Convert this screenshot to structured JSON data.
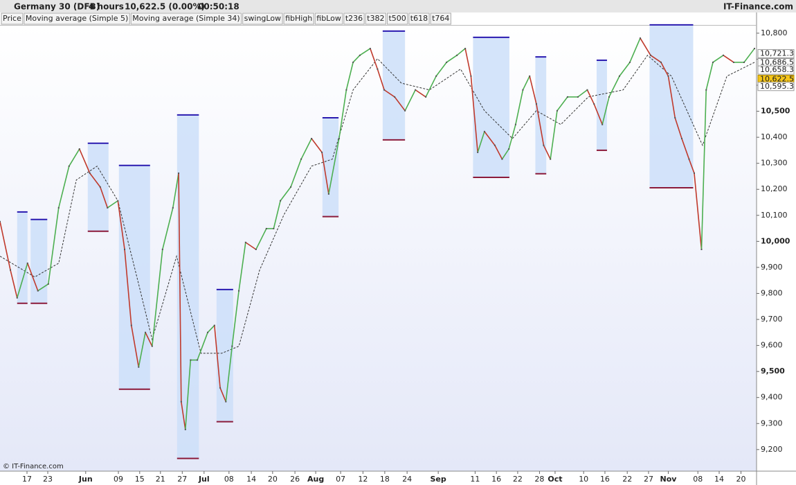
{
  "chart_data": {
    "type": "line",
    "header": {
      "instrument": "Germany 30 (DFB)",
      "period": "4 hours",
      "quote": "10,622.5 (0.00%)",
      "time": "00:50:18",
      "brand": "IT-Finance.com"
    },
    "copyright": "© IT-Finance.com",
    "series": [
      {
        "name": "Price",
        "up_color": "#4caf50",
        "down_color": "#c0392b",
        "x": [
          0.0,
          2.0,
          3.3,
          5.3,
          7.3,
          9.3,
          11.3,
          13.3,
          15.3,
          17.3,
          19.3,
          20.7,
          22.7,
          24.0,
          25.3,
          26.7,
          28.0,
          29.3,
          31.3,
          33.3,
          34.4,
          34.9,
          35.7,
          36.7,
          38.0,
          40.0,
          41.3,
          42.4,
          43.5,
          44.7,
          46.0,
          47.3,
          49.3,
          51.3,
          52.7,
          54.0,
          56.0,
          58.0,
          60.0,
          62.0,
          63.3,
          65.3,
          66.7,
          68.0,
          69.3,
          71.3,
          72.7,
          74.0,
          76.0,
          78.0,
          80.0,
          82.0,
          84.0,
          86.0,
          88.0,
          89.6,
          90.7,
          92.0,
          93.3,
          95.3,
          96.7,
          98.0,
          99.3,
          100.7,
          102.0,
          103.3,
          104.7,
          106.0,
          107.3,
          109.3,
          111.3,
          113.1,
          114.4,
          116.0,
          117.3,
          119.3,
          121.3,
          123.3,
          125.3,
          127.3,
          128.7,
          130.0,
          131.3,
          132.7,
          133.7,
          135.1,
          136.0,
          137.3,
          139.3,
          141.3,
          143.3,
          145.3
        ],
        "values": [
          10076,
          9890,
          9783,
          9916,
          9810,
          9836,
          10129,
          10289,
          10355,
          10262,
          10209,
          10129,
          10156,
          9969,
          9677,
          9517,
          9650,
          9597,
          9969,
          10129,
          10262,
          9384,
          9277,
          9544,
          9544,
          9650,
          9677,
          9437,
          9384,
          9597,
          9810,
          9996,
          9969,
          10049,
          10049,
          10156,
          10209,
          10316,
          10395,
          10342,
          10182,
          10395,
          10582,
          10688,
          10715,
          10741,
          10662,
          10582,
          10555,
          10502,
          10582,
          10555,
          10635,
          10688,
          10715,
          10741,
          10635,
          10342,
          10422,
          10369,
          10316,
          10355,
          10449,
          10582,
          10635,
          10528,
          10369,
          10316,
          10502,
          10555,
          10555,
          10582,
          10528,
          10449,
          10555,
          10635,
          10688,
          10781,
          10715,
          10688,
          10635,
          10475,
          10395,
          10316,
          10262,
          9969,
          10582,
          10688,
          10715,
          10688,
          10688,
          10741
        ]
      },
      {
        "name": "Moving average (Simple 34)",
        "color": "#333333",
        "x": [
          0,
          6.7,
          11.3,
          14.7,
          18.7,
          22.7,
          26.7,
          29.3,
          34,
          38.7,
          42.7,
          46,
          50,
          54.7,
          60,
          64,
          68,
          72.7,
          77.3,
          82.7,
          88.7,
          93.3,
          98.7,
          103.3,
          108,
          113.3,
          120,
          124.7,
          129.3,
          135.3,
          140,
          145.3
        ],
        "values": [
          9943,
          9863,
          9916,
          10236,
          10289,
          10156,
          9836,
          9623,
          9943,
          9570,
          9570,
          9597,
          9890,
          10103,
          10289,
          10316,
          10582,
          10702,
          10608,
          10582,
          10662,
          10502,
          10395,
          10502,
          10449,
          10555,
          10582,
          10715,
          10635,
          10369,
          10635,
          10688
        ]
      }
    ],
    "indicator_labels": [
      {
        "name": "Moving average (Simple 5)",
        "color": "#a8b0bc"
      },
      {
        "name": "swingLow",
        "color": "#29c5e6"
      },
      {
        "name": "fibHigh",
        "color": "#2a1ab0"
      },
      {
        "name": "fibLow",
        "color": "#8b1a3a"
      },
      {
        "name": "t236",
        "color": "#555555"
      },
      {
        "name": "t382",
        "color": "#555555"
      },
      {
        "name": "t500",
        "color": "#555555"
      },
      {
        "name": "t618",
        "color": "#555555"
      },
      {
        "name": "t764",
        "color": "#555555"
      }
    ],
    "fib_zones": [
      {
        "x": [
          3.3,
          5.3
        ],
        "high": 10113,
        "low": 9762
      },
      {
        "x": [
          5.9,
          9.1
        ],
        "high": 10084,
        "low": 9762
      },
      {
        "x": [
          16.9,
          20.9
        ],
        "high": 10377,
        "low": 10039
      },
      {
        "x": [
          22.9,
          28.9
        ],
        "high": 10292,
        "low": 9432
      },
      {
        "x": [
          34.1,
          38.3
        ],
        "high": 10486,
        "low": 9166
      },
      {
        "x": [
          41.7,
          44.9
        ],
        "high": 9815,
        "low": 9307
      },
      {
        "x": [
          62.1,
          65.2
        ],
        "high": 10475,
        "low": 10095
      },
      {
        "x": [
          73.7,
          78.0
        ],
        "high": 10808,
        "low": 10390
      },
      {
        "x": [
          91.1,
          98.1
        ],
        "high": 10784,
        "low": 10246
      },
      {
        "x": [
          103.1,
          105.2
        ],
        "high": 10709,
        "low": 10260
      },
      {
        "x": [
          114.9,
          116.9
        ],
        "high": 10696,
        "low": 10350
      },
      {
        "x": [
          125.1,
          133.5
        ],
        "high": 10832,
        "low": 10206
      }
    ],
    "price_markers": [
      {
        "value": 10721.3,
        "label": "10,721.3"
      },
      {
        "value": 10686.5,
        "label": "10,686.5"
      },
      {
        "value": 10658.3,
        "label": "10,658.3"
      },
      {
        "value": 10622.5,
        "label": "10,622.5",
        "highlight": true
      },
      {
        "value": 10595.3,
        "label": "10,595.3"
      }
    ],
    "xlim": [
      0,
      145.7
    ],
    "ylim": [
      9117,
      10829
    ],
    "yticks": [
      {
        "value": 9200,
        "label": "9,200"
      },
      {
        "value": 9300,
        "label": "9,300"
      },
      {
        "value": 9400,
        "label": "9,400"
      },
      {
        "value": 9500,
        "label": "9,500"
      },
      {
        "value": 9600,
        "label": "9,600"
      },
      {
        "value": 9700,
        "label": "9,700"
      },
      {
        "value": 9800,
        "label": "9,800"
      },
      {
        "value": 9900,
        "label": "9,900"
      },
      {
        "value": 10000,
        "label": "10,000"
      },
      {
        "value": 10100,
        "label": "10,100"
      },
      {
        "value": 10200,
        "label": "10,200"
      },
      {
        "value": 10300,
        "label": "10,300"
      },
      {
        "value": 10400,
        "label": "10,400"
      },
      {
        "value": 10500,
        "label": "10,500"
      },
      {
        "value": 10600,
        "label": "10,600"
      },
      {
        "value": 10700,
        "label": "10,700"
      },
      {
        "value": 10800,
        "label": "10,800"
      }
    ],
    "xticks": [
      {
        "value": 5.2,
        "label": "17"
      },
      {
        "value": 9.2,
        "label": "23"
      },
      {
        "value": 16.5,
        "label": "Jun"
      },
      {
        "value": 22.8,
        "label": "09"
      },
      {
        "value": 26.9,
        "label": "15"
      },
      {
        "value": 30.9,
        "label": "21"
      },
      {
        "value": 35.1,
        "label": "27"
      },
      {
        "value": 39.3,
        "label": "Jul"
      },
      {
        "value": 44.1,
        "label": "08"
      },
      {
        "value": 48.4,
        "label": "14"
      },
      {
        "value": 52.5,
        "label": "20"
      },
      {
        "value": 56.8,
        "label": "26"
      },
      {
        "value": 60.8,
        "label": "Aug"
      },
      {
        "value": 65.6,
        "label": "07"
      },
      {
        "value": 69.9,
        "label": "12"
      },
      {
        "value": 74.1,
        "label": "18"
      },
      {
        "value": 78.4,
        "label": "24"
      },
      {
        "value": 84.4,
        "label": "Sep"
      },
      {
        "value": 91.5,
        "label": "11"
      },
      {
        "value": 95.6,
        "label": "16"
      },
      {
        "value": 99.7,
        "label": "22"
      },
      {
        "value": 103.9,
        "label": "28"
      },
      {
        "value": 106.9,
        "label": "Oct"
      },
      {
        "value": 112.4,
        "label": "10"
      },
      {
        "value": 116.5,
        "label": "16"
      },
      {
        "value": 120.8,
        "label": "22"
      },
      {
        "value": 124.9,
        "label": "27"
      },
      {
        "value": 128.7,
        "label": "Nov"
      },
      {
        "value": 134.4,
        "label": "08"
      },
      {
        "value": 138.5,
        "label": "14"
      },
      {
        "value": 142.7,
        "label": "20"
      }
    ]
  }
}
